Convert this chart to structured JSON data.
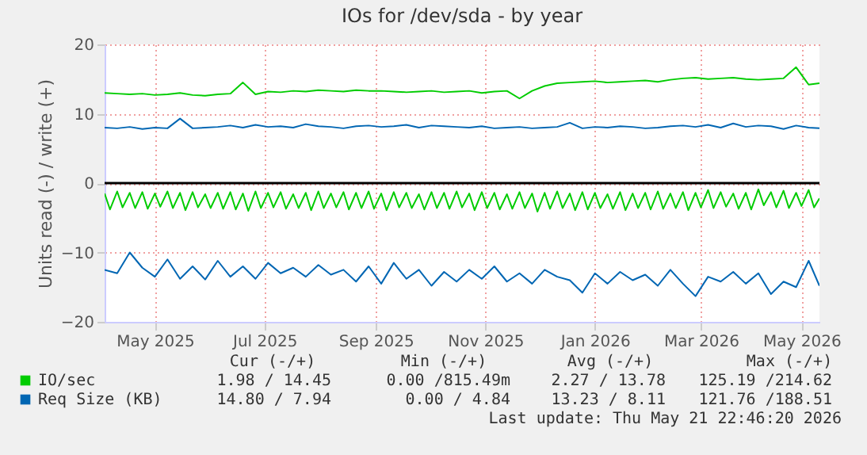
{
  "chart_data": {
    "type": "line",
    "title": "IOs for /dev/sda - by year",
    "ylabel": "Units read (-) / write (+)",
    "x": [
      "2025-04-18",
      "2025-04-25",
      "2025-05-02",
      "2025-05-09",
      "2025-05-16",
      "2025-05-23",
      "2025-05-30",
      "2025-06-06",
      "2025-06-13",
      "2025-06-20",
      "2025-06-27",
      "2025-07-04",
      "2025-07-11",
      "2025-07-18",
      "2025-07-25",
      "2025-08-01",
      "2025-08-08",
      "2025-08-15",
      "2025-08-22",
      "2025-08-29",
      "2025-09-05",
      "2025-09-12",
      "2025-09-19",
      "2025-09-26",
      "2025-10-03",
      "2025-10-10",
      "2025-10-17",
      "2025-10-24",
      "2025-10-31",
      "2025-11-07",
      "2025-11-14",
      "2025-11-21",
      "2025-11-28",
      "2025-12-05",
      "2025-12-12",
      "2025-12-19",
      "2025-12-26",
      "2026-01-02",
      "2026-01-09",
      "2026-01-16",
      "2026-01-23",
      "2026-01-30",
      "2026-02-06",
      "2026-02-13",
      "2026-02-20",
      "2026-02-27",
      "2026-03-06",
      "2026-03-13",
      "2026-03-20",
      "2026-03-27",
      "2026-04-03",
      "2026-04-10",
      "2026-04-17",
      "2026-04-24",
      "2026-05-01",
      "2026-05-08",
      "2026-05-15",
      "2026-05-21"
    ],
    "series": [
      {
        "name": "IO/sec",
        "color": "#00cc00",
        "values": [
          13.0,
          12.9,
          12.8,
          12.9,
          12.7,
          12.8,
          13.0,
          12.7,
          12.6,
          12.8,
          12.9,
          14.5,
          12.8,
          13.2,
          13.1,
          13.3,
          13.2,
          13.4,
          13.3,
          13.2,
          13.4,
          13.3,
          13.3,
          13.2,
          13.1,
          13.2,
          13.3,
          13.1,
          13.2,
          13.3,
          13.0,
          13.2,
          13.3,
          12.2,
          13.3,
          14.0,
          14.4,
          14.5,
          14.6,
          14.7,
          14.5,
          14.6,
          14.7,
          14.8,
          14.6,
          14.9,
          15.1,
          15.2,
          15.0,
          15.1,
          15.2,
          15.0,
          14.9,
          15.0,
          15.1,
          16.7,
          14.2,
          14.4
        ]
      },
      {
        "color": "#00cc00",
        "x": [
          "2025-04-18",
          "2025-04-21",
          "2025-04-25",
          "2025-04-28",
          "2025-05-02",
          "2025-05-05",
          "2025-05-09",
          "2025-05-12",
          "2025-05-16",
          "2025-05-19",
          "2025-05-23",
          "2025-05-26",
          "2025-05-30",
          "2025-06-02",
          "2025-06-06",
          "2025-06-09",
          "2025-06-13",
          "2025-06-16",
          "2025-06-20",
          "2025-06-23",
          "2025-06-27",
          "2025-06-30",
          "2025-07-04",
          "2025-07-07",
          "2025-07-11",
          "2025-07-14",
          "2025-07-18",
          "2025-07-21",
          "2025-07-25",
          "2025-07-28",
          "2025-08-01",
          "2025-08-04",
          "2025-08-08",
          "2025-08-11",
          "2025-08-15",
          "2025-08-18",
          "2025-08-22",
          "2025-08-25",
          "2025-08-29",
          "2025-09-01",
          "2025-09-05",
          "2025-09-08",
          "2025-09-12",
          "2025-09-15",
          "2025-09-19",
          "2025-09-22",
          "2025-09-26",
          "2025-09-29",
          "2025-10-03",
          "2025-10-06",
          "2025-10-10",
          "2025-10-13",
          "2025-10-17",
          "2025-10-20",
          "2025-10-24",
          "2025-10-27",
          "2025-10-31",
          "2025-11-03",
          "2025-11-07",
          "2025-11-10",
          "2025-11-14",
          "2025-11-17",
          "2025-11-21",
          "2025-11-24",
          "2025-11-28",
          "2025-12-01",
          "2025-12-05",
          "2025-12-08",
          "2025-12-12",
          "2025-12-15",
          "2025-12-19",
          "2025-12-22",
          "2025-12-26",
          "2025-12-29",
          "2026-01-02",
          "2026-01-05",
          "2026-01-09",
          "2026-01-12",
          "2026-01-16",
          "2026-01-19",
          "2026-01-23",
          "2026-01-26",
          "2026-01-30",
          "2026-02-02",
          "2026-02-06",
          "2026-02-09",
          "2026-02-13",
          "2026-02-16",
          "2026-02-20",
          "2026-02-23",
          "2026-02-27",
          "2026-03-02",
          "2026-03-06",
          "2026-03-09",
          "2026-03-13",
          "2026-03-16",
          "2026-03-20",
          "2026-03-23",
          "2026-03-27",
          "2026-03-30",
          "2026-04-03",
          "2026-04-06",
          "2026-04-10",
          "2026-04-13",
          "2026-04-17",
          "2026-04-20",
          "2026-04-24",
          "2026-04-27",
          "2026-05-01",
          "2026-05-04",
          "2026-05-08",
          "2026-05-11",
          "2026-05-15",
          "2026-05-18",
          "2026-05-21"
        ],
        "values": [
          -1.5,
          -3.8,
          -1.2,
          -3.5,
          -1.4,
          -3.6,
          -1.3,
          -3.7,
          -1.5,
          -3.4,
          -1.2,
          -3.6,
          -1.4,
          -3.9,
          -1.3,
          -3.5,
          -1.6,
          -3.6,
          -1.4,
          -3.7,
          -1.3,
          -3.8,
          -1.5,
          -4.0,
          -1.2,
          -3.6,
          -1.4,
          -3.5,
          -1.3,
          -3.7,
          -1.6,
          -3.6,
          -1.4,
          -3.9,
          -1.2,
          -3.6,
          -1.5,
          -3.5,
          -1.3,
          -3.8,
          -1.4,
          -3.6,
          -1.2,
          -3.7,
          -1.5,
          -3.9,
          -1.3,
          -3.5,
          -1.4,
          -3.6,
          -1.6,
          -3.8,
          -1.3,
          -3.6,
          -1.4,
          -3.7,
          -1.2,
          -3.5,
          -1.5,
          -3.9,
          -1.3,
          -3.6,
          -1.4,
          -3.8,
          -1.6,
          -3.7,
          -1.3,
          -3.6,
          -1.5,
          -4.1,
          -1.4,
          -3.7,
          -1.2,
          -3.6,
          -1.5,
          -3.9,
          -1.3,
          -3.8,
          -1.4,
          -3.6,
          -1.6,
          -3.7,
          -1.3,
          -3.9,
          -1.5,
          -3.6,
          -1.4,
          -3.8,
          -1.2,
          -3.7,
          -1.5,
          -3.6,
          -1.3,
          -3.9,
          -1.4,
          -3.5,
          -1.0,
          -3.6,
          -1.3,
          -3.4,
          -1.5,
          -3.7,
          -1.4,
          -3.8,
          -0.9,
          -3.2,
          -1.3,
          -3.5,
          -1.1,
          -3.6,
          -1.4,
          -3.3,
          -1.0,
          -3.5,
          -2.2
        ]
      },
      {
        "name": "Req Size (KB)",
        "color": "#0066b3",
        "values": [
          8.0,
          7.9,
          8.1,
          7.8,
          8.0,
          7.9,
          9.3,
          7.9,
          8.0,
          8.1,
          8.3,
          8.0,
          8.4,
          8.1,
          8.2,
          8.0,
          8.5,
          8.2,
          8.1,
          7.9,
          8.2,
          8.3,
          8.1,
          8.2,
          8.4,
          8.0,
          8.3,
          8.2,
          8.1,
          8.0,
          8.2,
          7.9,
          8.0,
          8.1,
          7.9,
          8.0,
          8.1,
          8.7,
          7.9,
          8.1,
          8.0,
          8.2,
          8.1,
          7.9,
          8.0,
          8.2,
          8.3,
          8.1,
          8.4,
          8.0,
          8.6,
          8.1,
          8.3,
          8.2,
          7.8,
          8.3,
          8.0,
          7.9
        ]
      },
      {
        "color": "#0066b3",
        "values": [
          -12.5,
          -13.0,
          -10.0,
          -12.2,
          -13.5,
          -11.0,
          -13.8,
          -12.0,
          -13.9,
          -11.2,
          -13.5,
          -12.0,
          -13.8,
          -11.5,
          -13.0,
          -12.2,
          -13.5,
          -11.8,
          -13.2,
          -12.5,
          -14.2,
          -12.0,
          -14.5,
          -11.5,
          -13.8,
          -12.5,
          -14.8,
          -12.8,
          -14.2,
          -12.5,
          -13.8,
          -12.0,
          -14.2,
          -13.0,
          -14.5,
          -12.5,
          -13.5,
          -14.0,
          -15.8,
          -13.0,
          -14.5,
          -12.8,
          -14.0,
          -13.2,
          -14.8,
          -12.5,
          -14.5,
          -16.3,
          -13.5,
          -14.2,
          -12.8,
          -14.5,
          -13.0,
          -16.0,
          -14.2,
          -15.0,
          -11.2,
          -14.8
        ]
      }
    ],
    "xlim": [
      "2025-04-18",
      "2026-05-21"
    ],
    "xticks": [
      {
        "value": "2025-05-16",
        "label": "May 2025"
      },
      {
        "value": "2025-07-16",
        "label": "Jul 2025"
      },
      {
        "value": "2025-09-16",
        "label": "Sep 2025"
      },
      {
        "value": "2025-11-16",
        "label": "Nov 2025"
      },
      {
        "value": "2026-01-16",
        "label": "Jan 2026"
      },
      {
        "value": "2026-03-16",
        "label": "Mar 2026"
      },
      {
        "value": "2026-05-11",
        "label": "May 2026"
      }
    ],
    "ylim": [
      -20,
      20
    ],
    "yticks": [
      -20,
      -10,
      0,
      10,
      20
    ],
    "grid": true,
    "legend": "bottom",
    "line_style": "solid",
    "ref_lines": [
      {
        "axis": "y",
        "value": 0,
        "color": "#000000"
      }
    ],
    "annotations": [
      "Cur (-/+)",
      "Min (-/+)",
      "Avg (-/+)",
      "Max (-/+)",
      "1.98 / 14.45",
      "0.00 /815.49m",
      "2.27 / 13.78",
      "125.19 /214.62",
      "14.80 /  7.94",
      "0.00 /  4.84",
      "13.23 /  8.11",
      "121.76 /188.51",
      "Last update: Thu May 21 22:46:20 2026"
    ]
  }
}
